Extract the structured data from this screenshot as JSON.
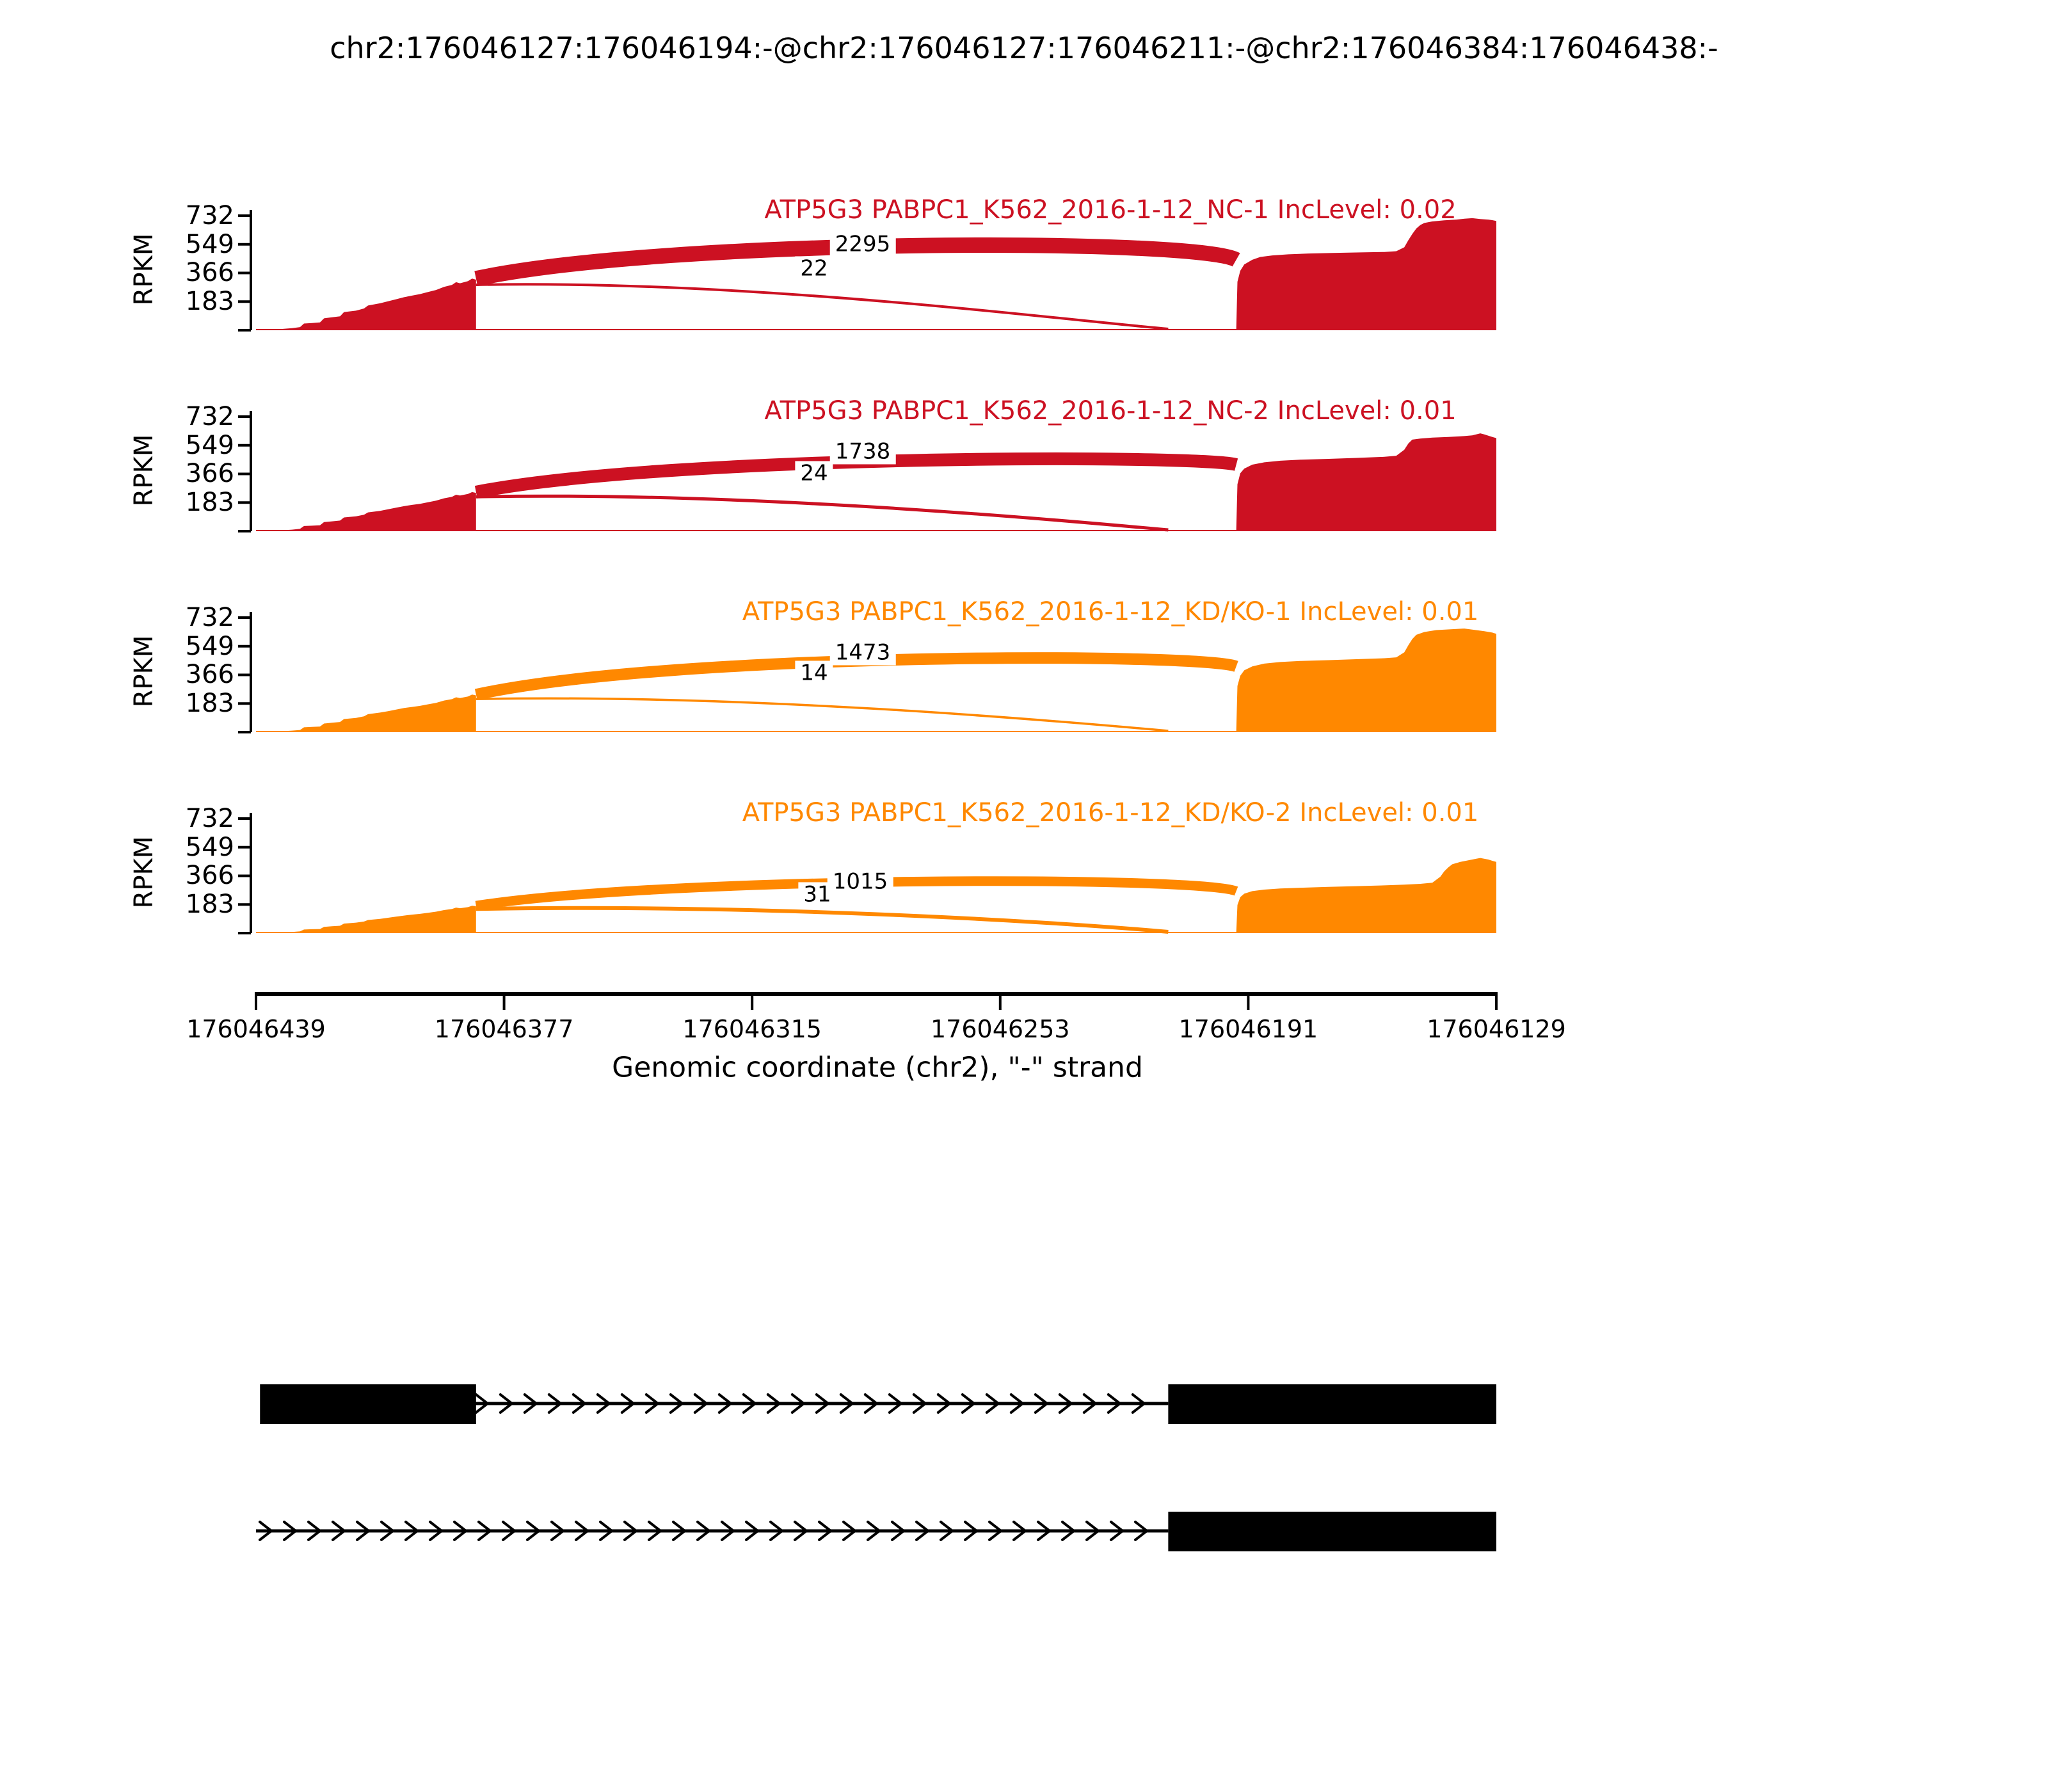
{
  "title": "chr2:176046127:176046194:-@chr2:176046127:176046211:-@chr2:176046384:176046438:-",
  "colors": {
    "control_red": "#CC1122",
    "knockdown_orange": "#FF8800",
    "axis_black": "#000000"
  },
  "chart_data": {
    "type": "area",
    "subtype": "sashimi-coverage",
    "y_axis": {
      "label": "RPKM",
      "ticks": [
        183,
        366,
        549,
        732
      ],
      "ylim": [
        0,
        760
      ]
    },
    "x_axis": {
      "label": "Genomic coordinate (chr2), \"-\" strand",
      "ticks": [
        176046439,
        176046377,
        176046315,
        176046253,
        176046191,
        176046129
      ],
      "left_pos": 176046439,
      "right_pos": 176046129,
      "reversed": true
    },
    "tracks": [
      {
        "title": "ATP5G3 PABPC1_K562_2016-1-12_NC-1 IncLevel: 0.02",
        "color": "#CC1122",
        "inc_level": 0.02,
        "junctions": [
          {
            "count": "2295",
            "from": 176046384,
            "to": 176046194,
            "apex_rpkm": 590,
            "width": 24,
            "label_x": 1348,
            "label_dy": 134
          },
          {
            "count": "22",
            "from": 176046384,
            "to": 176046211,
            "apex_rpkm": 300,
            "width": 4,
            "label_x": 1272,
            "label_dy": 96
          }
        ],
        "coverage_left_peak": 330,
        "coverage_left": [
          [
            176046437,
            0
          ],
          [
            176046433,
            7
          ],
          [
            176046430,
            13
          ],
          [
            176046428,
            20
          ],
          [
            176046427,
            43
          ],
          [
            176046425,
            46
          ],
          [
            176046423,
            50
          ],
          [
            176046422,
            76
          ],
          [
            176046420,
            83
          ],
          [
            176046418,
            89
          ],
          [
            176046417,
            116
          ],
          [
            176046414,
            125
          ],
          [
            176046412,
            139
          ],
          [
            176046411,
            158
          ],
          [
            176046408,
            172
          ],
          [
            176046406,
            185
          ],
          [
            176046404,
            198
          ],
          [
            176046402,
            211
          ],
          [
            176046400,
            221
          ],
          [
            176046398,
            231
          ],
          [
            176046396,
            244
          ],
          [
            176046394,
            257
          ],
          [
            176046392,
            277
          ],
          [
            176046390,
            290
          ],
          [
            176046389,
            307
          ],
          [
            176046388,
            300
          ],
          [
            176046386,
            314
          ],
          [
            176046385,
            330
          ],
          [
            176046384,
            323
          ]
        ],
        "coverage_right": [
          [
            176046194,
            0
          ],
          [
            176046193.7,
            310
          ],
          [
            176046193,
            380
          ],
          [
            176046192,
            420
          ],
          [
            176046190,
            450
          ],
          [
            176046188,
            468
          ],
          [
            176046185,
            478
          ],
          [
            176046181,
            485
          ],
          [
            176046176,
            490
          ],
          [
            176046170,
            494
          ],
          [
            176046163,
            497
          ],
          [
            176046157,
            500
          ],
          [
            176046154,
            505
          ],
          [
            176046152,
            530
          ],
          [
            176046151,
            575
          ],
          [
            176046150,
            615
          ],
          [
            176046149,
            650
          ],
          [
            176046148,
            672
          ],
          [
            176046147,
            685
          ],
          [
            176046145,
            695
          ],
          [
            176046142,
            702
          ],
          [
            176046139,
            707
          ],
          [
            176046137,
            712
          ],
          [
            176046135,
            716
          ],
          [
            176046133,
            710
          ],
          [
            176046131,
            707
          ],
          [
            176046130,
            703
          ],
          [
            176046129,
            698
          ]
        ]
      },
      {
        "title": "ATP5G3 PABPC1_K562_2016-1-12_NC-2 IncLevel: 0.01",
        "color": "#CC1122",
        "inc_level": 0.01,
        "junctions": [
          {
            "count": "1738",
            "from": 176046384,
            "to": 176046194,
            "apex_rpkm": 490,
            "width": 20,
            "label_x": 1348,
            "label_dy": 124
          },
          {
            "count": "24",
            "from": 176046384,
            "to": 176046211,
            "apex_rpkm": 230,
            "width": 5,
            "label_x": 1272,
            "label_dy": 90
          }
        ],
        "coverage_left_peak": 250,
        "coverage_left": [
          [
            176046437,
            0
          ],
          [
            176046433,
            5
          ],
          [
            176046430,
            10
          ],
          [
            176046428,
            15
          ],
          [
            176046427,
            33
          ],
          [
            176046425,
            35
          ],
          [
            176046423,
            38
          ],
          [
            176046422,
            58
          ],
          [
            176046420,
            63
          ],
          [
            176046418,
            68
          ],
          [
            176046417,
            88
          ],
          [
            176046414,
            95
          ],
          [
            176046412,
            105
          ],
          [
            176046411,
            120
          ],
          [
            176046408,
            130
          ],
          [
            176046406,
            140
          ],
          [
            176046404,
            150
          ],
          [
            176046402,
            160
          ],
          [
            176046400,
            168
          ],
          [
            176046398,
            175
          ],
          [
            176046396,
            185
          ],
          [
            176046394,
            195
          ],
          [
            176046392,
            210
          ],
          [
            176046390,
            220
          ],
          [
            176046389,
            233
          ],
          [
            176046388,
            228
          ],
          [
            176046386,
            238
          ],
          [
            176046385,
            250
          ],
          [
            176046384,
            245
          ]
        ],
        "coverage_right": [
          [
            176046194,
            0
          ],
          [
            176046193.7,
            300
          ],
          [
            176046193,
            370
          ],
          [
            176046192,
            400
          ],
          [
            176046190,
            425
          ],
          [
            176046187,
            440
          ],
          [
            176046183,
            450
          ],
          [
            176046178,
            457
          ],
          [
            176046171,
            462
          ],
          [
            176046164,
            468
          ],
          [
            176046157,
            475
          ],
          [
            176046154,
            482
          ],
          [
            176046152,
            520
          ],
          [
            176046151,
            560
          ],
          [
            176046150,
            585
          ],
          [
            176046148,
            592
          ],
          [
            176046145,
            598
          ],
          [
            176046141,
            602
          ],
          [
            176046138,
            606
          ],
          [
            176046135,
            612
          ],
          [
            176046133,
            625
          ],
          [
            176046132,
            618
          ],
          [
            176046130,
            602
          ],
          [
            176046129,
            595
          ]
        ]
      },
      {
        "title": "ATP5G3 PABPC1_K562_2016-1-12_KD/KO-1 IncLevel: 0.01",
        "color": "#FF8800",
        "inc_level": 0.01,
        "junctions": [
          {
            "count": "1473",
            "from": 176046384,
            "to": 176046194,
            "apex_rpkm": 510,
            "width": 18,
            "label_x": 1348,
            "label_dy": 124
          },
          {
            "count": "14",
            "from": 176046384,
            "to": 176046211,
            "apex_rpkm": 220,
            "width": 3.5,
            "label_x": 1272,
            "label_dy": 92
          }
        ],
        "coverage_left_peak": 240,
        "coverage_left": [
          [
            176046437,
            0
          ],
          [
            176046433,
            5
          ],
          [
            176046430,
            10
          ],
          [
            176046428,
            14
          ],
          [
            176046427,
            31
          ],
          [
            176046425,
            34
          ],
          [
            176046423,
            36
          ],
          [
            176046422,
            55
          ],
          [
            176046420,
            60
          ],
          [
            176046418,
            65
          ],
          [
            176046417,
            84
          ],
          [
            176046414,
            91
          ],
          [
            176046412,
            101
          ],
          [
            176046411,
            115
          ],
          [
            176046408,
            125
          ],
          [
            176046406,
            134
          ],
          [
            176046404,
            144
          ],
          [
            176046402,
            154
          ],
          [
            176046400,
            161
          ],
          [
            176046398,
            168
          ],
          [
            176046396,
            178
          ],
          [
            176046394,
            187
          ],
          [
            176046392,
            202
          ],
          [
            176046390,
            211
          ],
          [
            176046389,
            223
          ],
          [
            176046388,
            218
          ],
          [
            176046386,
            228
          ],
          [
            176046385,
            240
          ],
          [
            176046384,
            235
          ]
        ],
        "coverage_right": [
          [
            176046194,
            0
          ],
          [
            176046193.7,
            295
          ],
          [
            176046193,
            360
          ],
          [
            176046192,
            395
          ],
          [
            176046190,
            420
          ],
          [
            176046187,
            438
          ],
          [
            176046183,
            448
          ],
          [
            176046178,
            455
          ],
          [
            176046171,
            460
          ],
          [
            176046164,
            466
          ],
          [
            176046157,
            472
          ],
          [
            176046154,
            478
          ],
          [
            176046152,
            510
          ],
          [
            176046151,
            555
          ],
          [
            176046150,
            595
          ],
          [
            176046149,
            622
          ],
          [
            176046147,
            640
          ],
          [
            176046144,
            652
          ],
          [
            176046140,
            658
          ],
          [
            176046137,
            662
          ],
          [
            176046135,
            655
          ],
          [
            176046132,
            645
          ],
          [
            176046130,
            636
          ],
          [
            176046129,
            628
          ]
        ]
      },
      {
        "title": "ATP5G3 PABPC1_K562_2016-1-12_KD/KO-2 IncLevel: 0.01",
        "color": "#FF8800",
        "inc_level": 0.01,
        "junctions": [
          {
            "count": "1015",
            "from": 176046384,
            "to": 176046194,
            "apex_rpkm": 365,
            "width": 15,
            "label_x": 1344,
            "label_dy": 80
          },
          {
            "count": "31",
            "from": 176046384,
            "to": 176046211,
            "apex_rpkm": 165,
            "width": 6,
            "label_x": 1277,
            "label_dy": 60
          }
        ],
        "coverage_left_peak": 175,
        "coverage_left": [
          [
            176046437,
            0
          ],
          [
            176046433,
            4
          ],
          [
            176046430,
            7
          ],
          [
            176046428,
            11
          ],
          [
            176046427,
            23
          ],
          [
            176046425,
            25
          ],
          [
            176046423,
            26
          ],
          [
            176046422,
            40
          ],
          [
            176046420,
            44
          ],
          [
            176046418,
            47
          ],
          [
            176046417,
            61
          ],
          [
            176046414,
            67
          ],
          [
            176046412,
            74
          ],
          [
            176046411,
            84
          ],
          [
            176046408,
            91
          ],
          [
            176046406,
            98
          ],
          [
            176046404,
            105
          ],
          [
            176046402,
            112
          ],
          [
            176046400,
            118
          ],
          [
            176046398,
            123
          ],
          [
            176046396,
            130
          ],
          [
            176046394,
            137
          ],
          [
            176046392,
            147
          ],
          [
            176046390,
            154
          ],
          [
            176046389,
            163
          ],
          [
            176046388,
            159
          ],
          [
            176046386,
            166
          ],
          [
            176046385,
            175
          ],
          [
            176046384,
            172
          ]
        ],
        "coverage_right": [
          [
            176046194,
            0
          ],
          [
            176046193.7,
            180
          ],
          [
            176046193,
            230
          ],
          [
            176046192,
            252
          ],
          [
            176046190,
            268
          ],
          [
            176046187,
            278
          ],
          [
            176046183,
            285
          ],
          [
            176046178,
            290
          ],
          [
            176046171,
            295
          ],
          [
            176046164,
            300
          ],
          [
            176046157,
            305
          ],
          [
            176046152,
            310
          ],
          [
            176046148,
            315
          ],
          [
            176046145,
            322
          ],
          [
            176046143,
            360
          ],
          [
            176046142,
            395
          ],
          [
            176046141,
            420
          ],
          [
            176046140,
            440
          ],
          [
            176046138,
            455
          ],
          [
            176046136,
            465
          ],
          [
            176046134,
            475
          ],
          [
            176046133,
            480
          ],
          [
            176046131,
            470
          ],
          [
            176046130,
            462
          ],
          [
            176046129,
            455
          ]
        ]
      }
    ],
    "transcripts": [
      {
        "exons": [
          [
            176046384,
            176046438
          ],
          [
            176046129,
            176046211
          ]
        ],
        "intron_arrow_span": [
          176046211,
          176046384
        ],
        "strand_arrows": "right"
      },
      {
        "exons": [
          [
            176046129,
            176046211
          ]
        ],
        "intron_arrow_span": [
          176046211,
          176046439
        ],
        "strand_arrows": "right"
      }
    ]
  }
}
